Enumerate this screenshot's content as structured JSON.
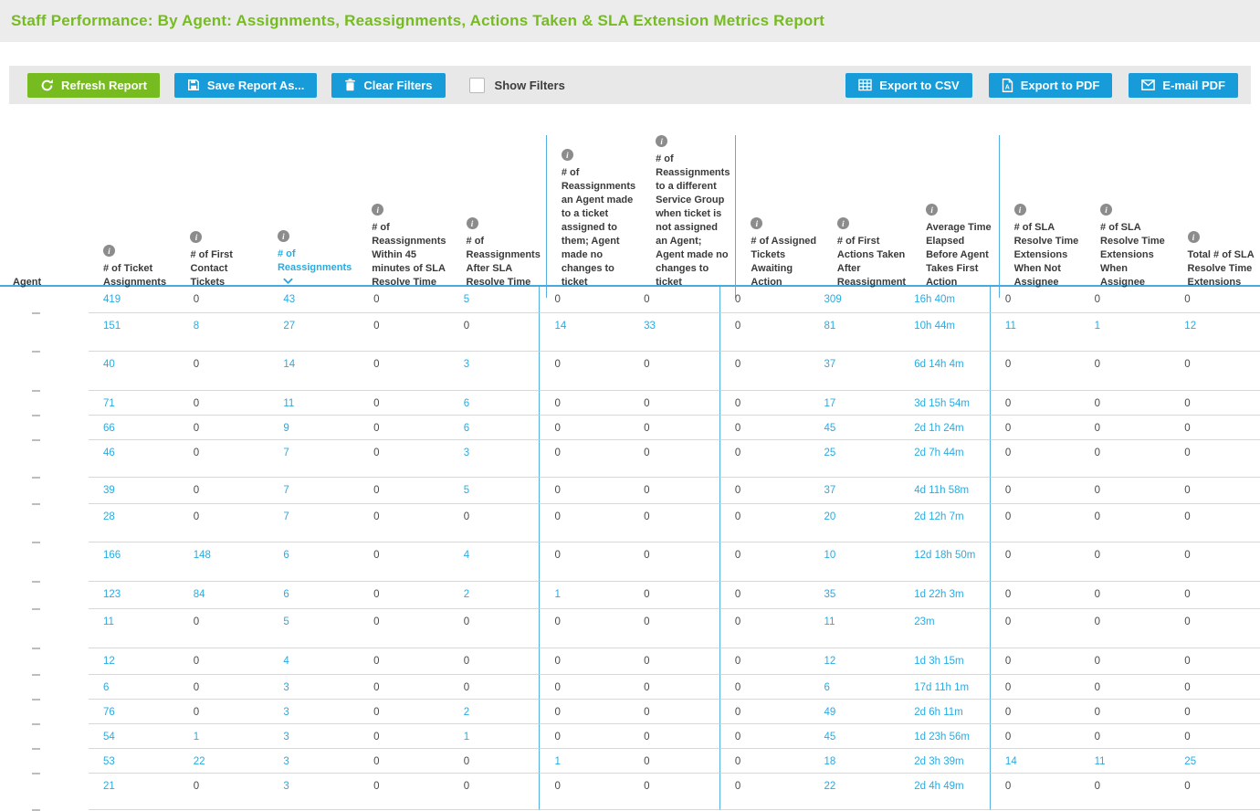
{
  "header": {
    "title": "Staff Performance: By Agent: Assignments, Reassignments, Actions Taken & SLA Extension Metrics Report"
  },
  "toolbar": {
    "refresh_label": "Refresh Report",
    "save_label": "Save Report As...",
    "clear_filters_label": "Clear Filters",
    "show_filters_label": "Show Filters",
    "show_filters_checked": false,
    "export_csv_label": "Export to CSV",
    "export_pdf_label": "Export to PDF",
    "email_pdf_label": "E-mail PDF"
  },
  "colors": {
    "brand_green": "#76bc21",
    "brand_blue": "#189bd9",
    "link_blue": "#29abe2",
    "group_divider_blue": "#55afe0"
  },
  "table": {
    "sort": {
      "column": "# of Reassignments",
      "direction": "desc"
    },
    "agent_placeholder": "-",
    "columns": [
      {
        "label": "Agent",
        "info_icon": false
      },
      {
        "label": "# of Ticket Assignments",
        "info_icon": true
      },
      {
        "label": "# of First Contact Tickets",
        "info_icon": true
      },
      {
        "label": "# of Reassignments",
        "info_icon": true,
        "sorted": true
      },
      {
        "label": "# of Reassignments Within 45 minutes of SLA Resolve Time",
        "info_icon": true
      },
      {
        "label": "# of Reassignments After SLA Resolve Time",
        "info_icon": true
      },
      {
        "label": "# of Reassignments an Agent made to a ticket assigned to them; Agent made no changes to ticket",
        "info_icon": true
      },
      {
        "label": "# of Reassignments to a different Service Group when ticket is not assigned an Agent; Agent made no changes to ticket",
        "info_icon": true
      },
      {
        "label": "# of Assigned Tickets Awaiting Action",
        "info_icon": true
      },
      {
        "label": "# of First Actions Taken After Reassignment",
        "info_icon": true
      },
      {
        "label": "Average Time Elapsed Before Agent Takes First Action",
        "info_icon": true
      },
      {
        "label": "# of SLA Resolve Time Extensions When Not Assignee",
        "info_icon": true
      },
      {
        "label": "# of SLA Resolve Time Extensions When Assignee",
        "info_icon": true
      },
      {
        "label": "Total # of SLA Resolve Time Extensions",
        "info_icon": true
      }
    ],
    "rows": [
      [
        "419",
        "0",
        "43",
        "0",
        "5",
        "0",
        "0",
        "0",
        "309",
        "16h 40m",
        "0",
        "0",
        "0"
      ],
      [
        "151",
        "8",
        "27",
        "0",
        "0",
        "14",
        "33",
        "0",
        "81",
        "10h 44m",
        "11",
        "1",
        "12"
      ],
      [
        "40",
        "0",
        "14",
        "0",
        "3",
        "0",
        "0",
        "0",
        "37",
        "6d 14h 4m",
        "0",
        "0",
        "0"
      ],
      [
        "71",
        "0",
        "11",
        "0",
        "6",
        "0",
        "0",
        "0",
        "17",
        "3d 15h 54m",
        "0",
        "0",
        "0"
      ],
      [
        "66",
        "0",
        "9",
        "0",
        "6",
        "0",
        "0",
        "0",
        "45",
        "2d 1h 24m",
        "0",
        "0",
        "0"
      ],
      [
        "46",
        "0",
        "7",
        "0",
        "3",
        "0",
        "0",
        "0",
        "25",
        "2d 7h 44m",
        "0",
        "0",
        "0"
      ],
      [
        "39",
        "0",
        "7",
        "0",
        "5",
        "0",
        "0",
        "0",
        "37",
        "4d 11h 58m",
        "0",
        "0",
        "0"
      ],
      [
        "28",
        "0",
        "7",
        "0",
        "0",
        "0",
        "0",
        "0",
        "20",
        "2d 12h 7m",
        "0",
        "0",
        "0"
      ],
      [
        "166",
        "148",
        "6",
        "0",
        "4",
        "0",
        "0",
        "0",
        "10",
        "12d 18h 50m",
        "0",
        "0",
        "0"
      ],
      [
        "123",
        "84",
        "6",
        "0",
        "2",
        "1",
        "0",
        "0",
        "35",
        "1d 22h 3m",
        "0",
        "0",
        "0"
      ],
      [
        "11",
        "0",
        "5",
        "0",
        "0",
        "0",
        "0",
        "0",
        "11",
        "23m",
        "0",
        "0",
        "0"
      ],
      [
        "12",
        "0",
        "4",
        "0",
        "0",
        "0",
        "0",
        "0",
        "12",
        "1d 3h 15m",
        "0",
        "0",
        "0"
      ],
      [
        "6",
        "0",
        "3",
        "0",
        "0",
        "0",
        "0",
        "0",
        "6",
        "17d 11h 1m",
        "0",
        "0",
        "0"
      ],
      [
        "76",
        "0",
        "3",
        "0",
        "2",
        "0",
        "0",
        "0",
        "49",
        "2d 6h 11m",
        "0",
        "0",
        "0"
      ],
      [
        "54",
        "1",
        "3",
        "0",
        "1",
        "0",
        "0",
        "0",
        "45",
        "1d 23h 56m",
        "0",
        "0",
        "0"
      ],
      [
        "53",
        "22",
        "3",
        "0",
        "0",
        "1",
        "0",
        "0",
        "18",
        "2d 3h 39m",
        "14",
        "11",
        "25"
      ],
      [
        "21",
        "0",
        "3",
        "0",
        "0",
        "0",
        "0",
        "0",
        "22",
        "2d 4h 49m",
        "0",
        "0",
        "0"
      ]
    ]
  }
}
